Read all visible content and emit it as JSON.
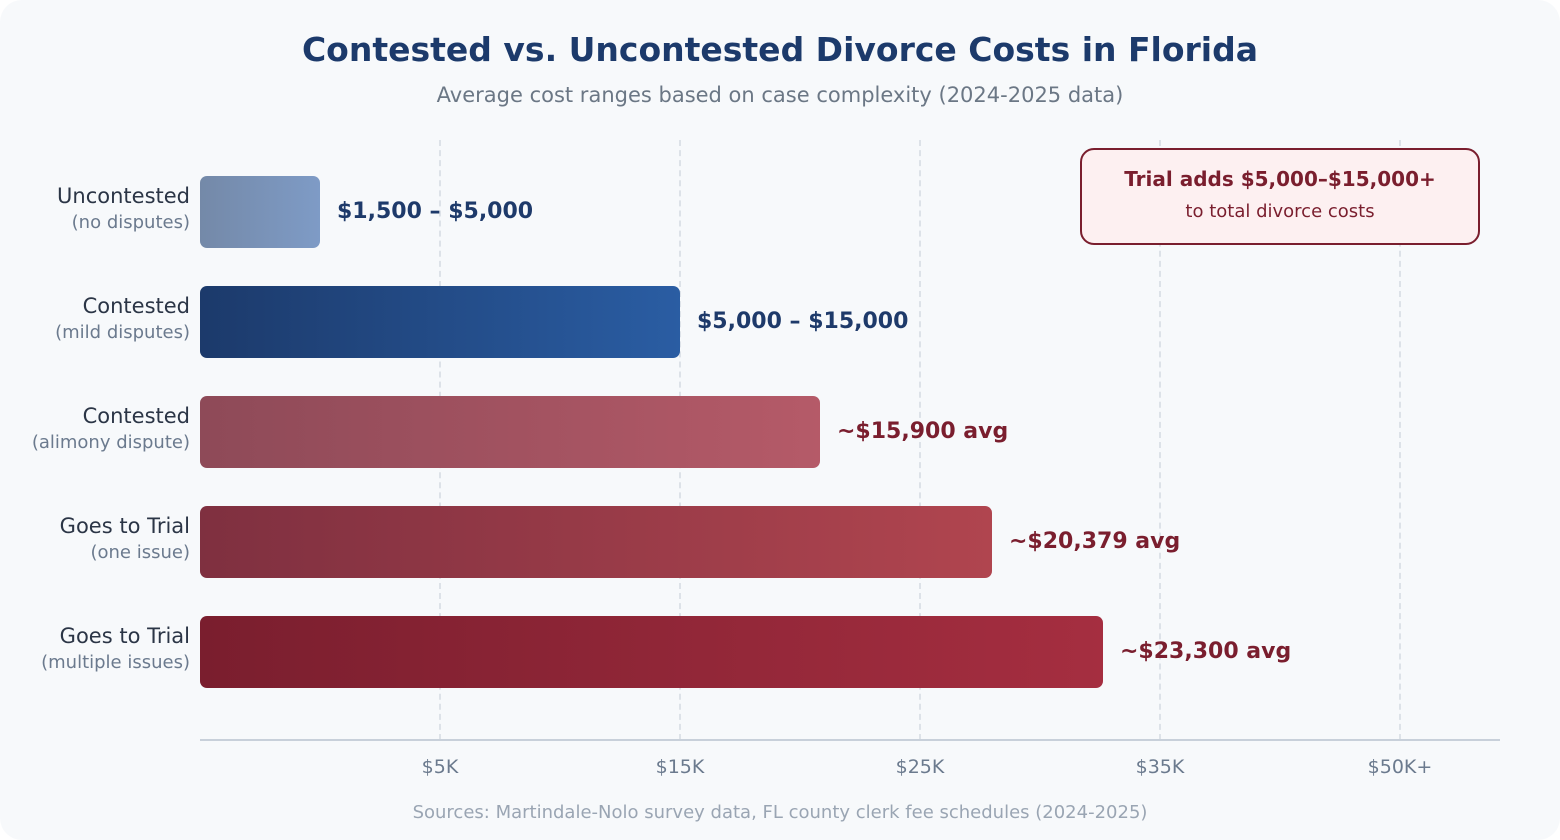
{
  "chart_data": {
    "type": "bar",
    "orientation": "horizontal",
    "title": "Contested vs. Uncontested Divorce Costs in Florida",
    "subtitle": "Average cost ranges based on case complexity (2024-2025 data)",
    "x_ticks": [
      "$5K",
      "$15K",
      "$25K",
      "$35K",
      "$50K+"
    ],
    "grid": true,
    "categories": [
      {
        "label": "Uncontested",
        "sublabel": "(no disputes)",
        "value_label": "$1,500 – $5,000",
        "fill": 0.092,
        "colors": [
          "#7489a8",
          "#7e9bc6"
        ],
        "label_color": "#1e3a6a"
      },
      {
        "label": "Contested",
        "sublabel": "(mild disputes)",
        "value_label": "$5,000 – $15,000",
        "fill": 0.369,
        "colors": [
          "#1c3a6b",
          "#2a5da3"
        ],
        "label_color": "#1e3a6a"
      },
      {
        "label": "Contested",
        "sublabel": "(alimony dispute)",
        "value_label": "~$15,900 avg",
        "fill": 0.477,
        "colors": [
          "#8e4a58",
          "#b55a68"
        ],
        "label_color": "#7a1e2e"
      },
      {
        "label": "Goes to Trial",
        "sublabel": "(one issue)",
        "value_label": "~$20,379 avg",
        "fill": 0.609,
        "colors": [
          "#7f3040",
          "#b0454f"
        ],
        "label_color": "#7a1e2e"
      },
      {
        "label": "Goes to Trial",
        "sublabel": "(multiple issues)",
        "value_label": "~$23,300 avg",
        "fill": 0.695,
        "colors": [
          "#7a1e2e",
          "#a52e40"
        ],
        "label_color": "#7a1e2e"
      }
    ],
    "annotation": {
      "heading": "Trial adds $5,000–$15,000+",
      "text": "to total divorce costs"
    },
    "source": "Sources: Martindale-Nolo survey data, FL county clerk fee schedules (2024-2025)"
  }
}
